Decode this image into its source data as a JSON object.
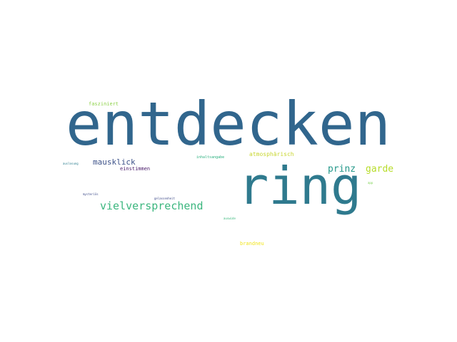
{
  "words": {
    "entdecken": {
      "text": "entdecken",
      "color": "#31668d"
    },
    "ring": {
      "text": "ring",
      "color": "#2f7a8e"
    },
    "vielversprechend": {
      "text": "vielversprechend",
      "color": "#3bb67e"
    },
    "prinz": {
      "text": "prinz",
      "color": "#24988a"
    },
    "garde": {
      "text": "garde",
      "color": "#b7dc2a"
    },
    "mausklick": {
      "text": "mausklick",
      "color": "#3d5289"
    },
    "einstimmen": {
      "text": "einstimmen",
      "color": "#4a1b6a"
    },
    "atmosphaerisch": {
      "text": "atmosphärisch",
      "color": "#c8d630"
    },
    "fasziniert": {
      "text": "fasziniert",
      "color": "#8fd24c"
    },
    "inhaltsangabe": {
      "text": "inhaltsangabe",
      "color": "#2bb07f"
    },
    "auslosung": {
      "text": "auslosung",
      "color": "#2a7d8e"
    },
    "mysterioes": {
      "text": "mysteriös",
      "color": "#3e4c8a"
    },
    "gelassenheit": {
      "text": "gelassenheit",
      "color": "#3e4a89"
    },
    "brandneu": {
      "text": "brandneu",
      "color": "#f1e51d"
    },
    "auswide": {
      "text": "auswide",
      "color": "#35b779"
    },
    "app": {
      "text": "app",
      "color": "#7ad151"
    }
  }
}
